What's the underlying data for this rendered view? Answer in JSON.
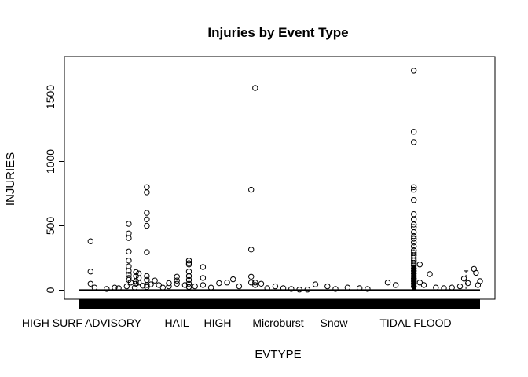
{
  "chart_data": {
    "type": "boxplot",
    "title": "Injuries by Event Type",
    "xlabel": "EVTYPE",
    "ylabel": "INJURIES",
    "ylim": [
      -60,
      1760
    ],
    "y_ticks": [
      0,
      500,
      1000,
      1500
    ],
    "x_tick_labels": [
      "HIGH SURF ADVISORY",
      "HAIL",
      "HIGH",
      "Microburst",
      "Snow",
      "TIDAL FLOOD"
    ],
    "outliers": [
      {
        "x": 0.03,
        "y": 380
      },
      {
        "x": 0.03,
        "y": 145
      },
      {
        "x": 0.03,
        "y": 50
      },
      {
        "x": 0.04,
        "y": 20
      },
      {
        "x": 0.07,
        "y": 10
      },
      {
        "x": 0.09,
        "y": 20
      },
      {
        "x": 0.1,
        "y": 15
      },
      {
        "x": 0.12,
        "y": 30
      },
      {
        "x": 0.13,
        "y": 60
      },
      {
        "x": 0.14,
        "y": 20
      },
      {
        "x": 0.16,
        "y": 35
      },
      {
        "x": 0.17,
        "y": 25
      },
      {
        "x": 0.18,
        "y": 45
      },
      {
        "x": 0.125,
        "y": 515
      },
      {
        "x": 0.125,
        "y": 440
      },
      {
        "x": 0.125,
        "y": 405
      },
      {
        "x": 0.125,
        "y": 300
      },
      {
        "x": 0.125,
        "y": 230
      },
      {
        "x": 0.125,
        "y": 185
      },
      {
        "x": 0.125,
        "y": 150
      },
      {
        "x": 0.125,
        "y": 120
      },
      {
        "x": 0.125,
        "y": 95
      },
      {
        "x": 0.125,
        "y": 80
      },
      {
        "x": 0.143,
        "y": 140
      },
      {
        "x": 0.143,
        "y": 110
      },
      {
        "x": 0.143,
        "y": 70
      },
      {
        "x": 0.143,
        "y": 50
      },
      {
        "x": 0.15,
        "y": 130
      },
      {
        "x": 0.15,
        "y": 95
      },
      {
        "x": 0.15,
        "y": 60
      },
      {
        "x": 0.17,
        "y": 800
      },
      {
        "x": 0.17,
        "y": 760
      },
      {
        "x": 0.17,
        "y": 600
      },
      {
        "x": 0.17,
        "y": 550
      },
      {
        "x": 0.17,
        "y": 500
      },
      {
        "x": 0.17,
        "y": 295
      },
      {
        "x": 0.17,
        "y": 110
      },
      {
        "x": 0.17,
        "y": 80
      },
      {
        "x": 0.17,
        "y": 40
      },
      {
        "x": 0.19,
        "y": 75
      },
      {
        "x": 0.2,
        "y": 40
      },
      {
        "x": 0.21,
        "y": 20
      },
      {
        "x": 0.225,
        "y": 55
      },
      {
        "x": 0.225,
        "y": 30
      },
      {
        "x": 0.245,
        "y": 105
      },
      {
        "x": 0.245,
        "y": 75
      },
      {
        "x": 0.245,
        "y": 50
      },
      {
        "x": 0.265,
        "y": 40
      },
      {
        "x": 0.275,
        "y": 230
      },
      {
        "x": 0.275,
        "y": 210
      },
      {
        "x": 0.275,
        "y": 200
      },
      {
        "x": 0.275,
        "y": 145
      },
      {
        "x": 0.275,
        "y": 110
      },
      {
        "x": 0.275,
        "y": 80
      },
      {
        "x": 0.275,
        "y": 50
      },
      {
        "x": 0.275,
        "y": 25
      },
      {
        "x": 0.29,
        "y": 30
      },
      {
        "x": 0.31,
        "y": 180
      },
      {
        "x": 0.31,
        "y": 95
      },
      {
        "x": 0.31,
        "y": 40
      },
      {
        "x": 0.33,
        "y": 20
      },
      {
        "x": 0.35,
        "y": 55
      },
      {
        "x": 0.37,
        "y": 60
      },
      {
        "x": 0.385,
        "y": 85
      },
      {
        "x": 0.4,
        "y": 30
      },
      {
        "x": 0.43,
        "y": 780
      },
      {
        "x": 0.43,
        "y": 315
      },
      {
        "x": 0.43,
        "y": 105
      },
      {
        "x": 0.43,
        "y": 60
      },
      {
        "x": 0.44,
        "y": 1570
      },
      {
        "x": 0.44,
        "y": 60
      },
      {
        "x": 0.44,
        "y": 40
      },
      {
        "x": 0.455,
        "y": 50
      },
      {
        "x": 0.47,
        "y": 15
      },
      {
        "x": 0.49,
        "y": 30
      },
      {
        "x": 0.51,
        "y": 15
      },
      {
        "x": 0.53,
        "y": 10
      },
      {
        "x": 0.55,
        "y": 5
      },
      {
        "x": 0.57,
        "y": 5
      },
      {
        "x": 0.59,
        "y": 45
      },
      {
        "x": 0.62,
        "y": 30
      },
      {
        "x": 0.64,
        "y": 10
      },
      {
        "x": 0.67,
        "y": 20
      },
      {
        "x": 0.7,
        "y": 15
      },
      {
        "x": 0.72,
        "y": 10
      },
      {
        "x": 0.77,
        "y": 60
      },
      {
        "x": 0.79,
        "y": 40
      },
      {
        "x": 0.835,
        "y": 1705
      },
      {
        "x": 0.835,
        "y": 1230
      },
      {
        "x": 0.835,
        "y": 1150
      },
      {
        "x": 0.835,
        "y": 800
      },
      {
        "x": 0.835,
        "y": 780
      },
      {
        "x": 0.835,
        "y": 700
      },
      {
        "x": 0.835,
        "y": 590
      },
      {
        "x": 0.835,
        "y": 550
      },
      {
        "x": 0.835,
        "y": 510
      },
      {
        "x": 0.835,
        "y": 490
      },
      {
        "x": 0.835,
        "y": 450
      },
      {
        "x": 0.835,
        "y": 420
      },
      {
        "x": 0.835,
        "y": 400
      },
      {
        "x": 0.835,
        "y": 370
      },
      {
        "x": 0.835,
        "y": 340
      },
      {
        "x": 0.835,
        "y": 310
      },
      {
        "x": 0.835,
        "y": 290
      },
      {
        "x": 0.835,
        "y": 270
      },
      {
        "x": 0.835,
        "y": 250
      },
      {
        "x": 0.835,
        "y": 230
      },
      {
        "x": 0.835,
        "y": 210
      },
      {
        "x": 0.835,
        "y": 190
      },
      {
        "x": 0.835,
        "y": 170
      },
      {
        "x": 0.835,
        "y": 150
      },
      {
        "x": 0.835,
        "y": 130
      },
      {
        "x": 0.835,
        "y": 110
      },
      {
        "x": 0.835,
        "y": 90
      },
      {
        "x": 0.835,
        "y": 70
      },
      {
        "x": 0.835,
        "y": 50
      },
      {
        "x": 0.835,
        "y": 30
      },
      {
        "x": 0.85,
        "y": 200
      },
      {
        "x": 0.85,
        "y": 60
      },
      {
        "x": 0.86,
        "y": 40
      },
      {
        "x": 0.875,
        "y": 125
      },
      {
        "x": 0.89,
        "y": 20
      },
      {
        "x": 0.91,
        "y": 15
      },
      {
        "x": 0.93,
        "y": 20
      },
      {
        "x": 0.95,
        "y": 30
      },
      {
        "x": 0.96,
        "y": 90
      },
      {
        "x": 0.97,
        "y": 55
      },
      {
        "x": 0.985,
        "y": 165
      },
      {
        "x": 0.99,
        "y": 135
      },
      {
        "x": 1.0,
        "y": 70
      },
      {
        "x": 0.995,
        "y": 40
      }
    ]
  }
}
